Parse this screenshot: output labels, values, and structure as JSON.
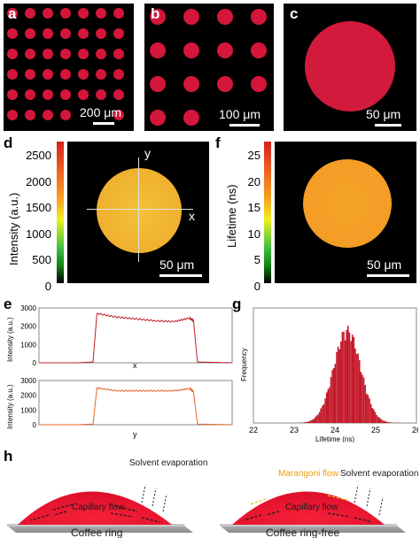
{
  "panels": {
    "a": {
      "label": "a",
      "scale": "200 μm"
    },
    "b": {
      "label": "b",
      "scale": "100 μm"
    },
    "c": {
      "label": "c",
      "scale": "50 μm"
    },
    "d": {
      "label": "d",
      "scale": "50 μm",
      "ylabel": "Intensity (a.u.)",
      "ticks": [
        "2500",
        "2000",
        "1500",
        "1000",
        "500",
        "0"
      ],
      "axis_x": "x",
      "axis_y": "y"
    },
    "f": {
      "label": "f",
      "scale": "50 μm",
      "ylabel": "Lifetime (ns)",
      "ticks": [
        "25",
        "20",
        "15",
        "10",
        "5",
        "0"
      ]
    },
    "e": {
      "label": "e"
    },
    "g": {
      "label": "g"
    },
    "h": {
      "label": "h",
      "left": {
        "flow": "Capillary flow",
        "evap": "Solvent evaporation",
        "caption": "Coffee ring"
      },
      "right": {
        "flow": "Capillary flow",
        "marangoni": "Marangoni flow",
        "evap": "Solvent evaporation",
        "caption": "Coffee ring-free"
      }
    }
  },
  "chart_data": [
    {
      "type": "line",
      "title": "",
      "xlabel": "x",
      "ylabel": "Intensity (a.u.)",
      "yticks": [
        "0",
        "1000",
        "2000",
        "3000"
      ],
      "ylim": [
        0,
        3000
      ],
      "color": "#c0202a",
      "x": [
        0,
        0.2,
        0.28,
        0.3,
        0.4,
        0.5,
        0.6,
        0.7,
        0.78,
        0.8,
        0.82,
        1.0
      ],
      "values": [
        0,
        0,
        50,
        2700,
        2500,
        2400,
        2300,
        2250,
        2450,
        2300,
        50,
        0
      ]
    },
    {
      "type": "line",
      "title": "",
      "xlabel": "y",
      "ylabel": "Intensity (a.u.)",
      "yticks": [
        "0",
        "1000",
        "2000",
        "3000"
      ],
      "ylim": [
        0,
        3000
      ],
      "color": "#e8642a",
      "x": [
        0,
        0.2,
        0.28,
        0.3,
        0.4,
        0.5,
        0.6,
        0.7,
        0.78,
        0.8,
        0.82,
        1.0
      ],
      "values": [
        0,
        0,
        50,
        2500,
        2300,
        2300,
        2300,
        2300,
        2450,
        2250,
        50,
        0
      ]
    },
    {
      "type": "bar",
      "title": "",
      "xlabel": "Lifetime (ns)",
      "ylabel": "Frequency",
      "xticks": [
        "22",
        "23",
        "24",
        "25",
        "26"
      ],
      "xlim": [
        22,
        26
      ],
      "color": "#c41a2a",
      "distribution": {
        "mean": 24.3,
        "sd": 0.33,
        "min": 22.8,
        "max": 25.6
      }
    }
  ]
}
